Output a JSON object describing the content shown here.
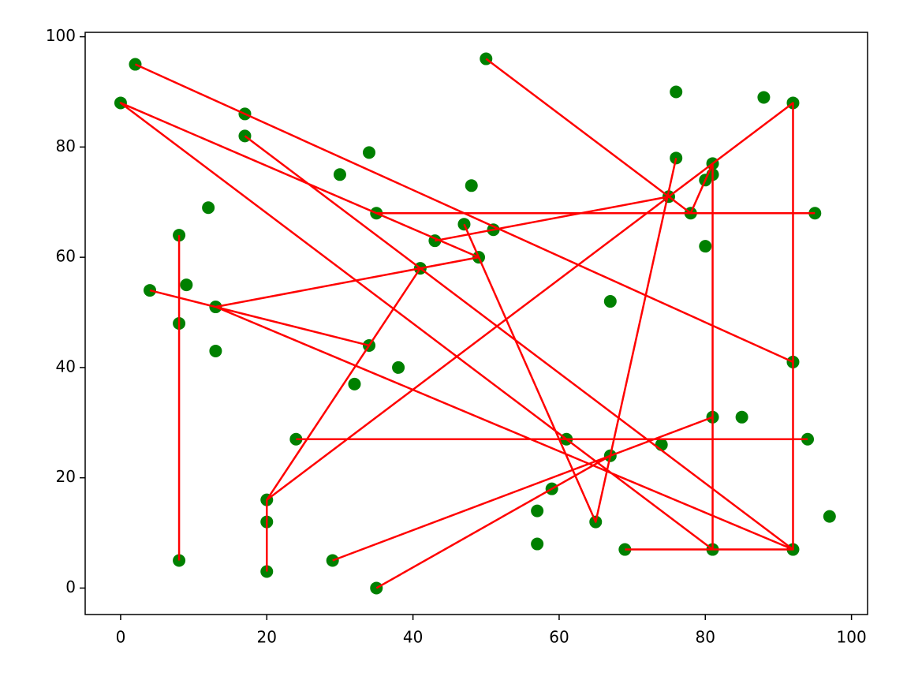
{
  "chart_data": {
    "type": "scatter-line",
    "xlim": [
      -4.85,
      102.2
    ],
    "ylim": [
      -4.8,
      100.8
    ],
    "xticks": [
      0,
      20,
      40,
      60,
      80,
      100
    ],
    "yticks": [
      0,
      20,
      40,
      60,
      80,
      100
    ],
    "points": {
      "color": "#008000",
      "x": [
        2,
        0,
        17,
        17,
        50,
        76,
        88,
        92,
        34,
        30,
        48,
        76,
        81,
        80,
        81,
        75,
        78,
        95,
        12,
        35,
        47,
        51,
        43,
        8,
        49,
        80,
        41,
        9,
        4,
        13,
        67,
        8,
        34,
        13,
        38,
        92,
        32,
        81,
        85,
        24,
        61,
        94,
        74,
        67,
        59,
        20,
        57,
        65,
        20,
        97,
        57,
        69,
        81,
        92,
        8,
        29,
        20,
        35
      ],
      "y": [
        95,
        88,
        86,
        82,
        96,
        90,
        89,
        88,
        79,
        75,
        73,
        78,
        77,
        74,
        75,
        71,
        68,
        68,
        69,
        68,
        66,
        65,
        63,
        64,
        60,
        62,
        58,
        55,
        54,
        51,
        52,
        48,
        44,
        43,
        40,
        41,
        37,
        31,
        31,
        27,
        27,
        27,
        26,
        24,
        18,
        16,
        14,
        12,
        12,
        13,
        8,
        7,
        7,
        7,
        5,
        5,
        3,
        0
      ]
    },
    "line": {
      "color": "#ff0000",
      "x": [
        50,
        75,
        78,
        81,
        81,
        92,
        92,
        75,
        20,
        20,
        null,
        20,
        41,
        49,
        0,
        81,
        69,
        null,
        43,
        75,
        null,
        35,
        95,
        null,
        24,
        94,
        null,
        2,
        92,
        null,
        17,
        92,
        null,
        13,
        41,
        null,
        4,
        34,
        13,
        92,
        null,
        8,
        8,
        null,
        29,
        81,
        null,
        35,
        67,
        null,
        76,
        65,
        47
      ],
      "y": [
        96,
        71,
        68,
        77,
        7,
        7,
        88,
        71,
        16,
        3,
        null,
        16,
        58,
        60,
        88,
        7,
        7,
        null,
        63,
        71,
        null,
        68,
        68,
        null,
        27,
        27,
        null,
        95,
        41,
        null,
        82,
        7,
        null,
        51,
        58,
        null,
        54,
        44,
        51,
        7,
        null,
        64,
        5,
        null,
        5,
        31,
        null,
        0,
        24,
        null,
        78,
        12,
        66
      ]
    }
  }
}
